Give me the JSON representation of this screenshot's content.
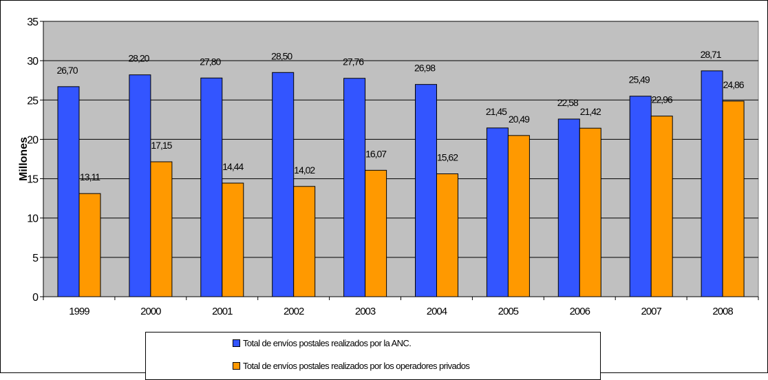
{
  "chart_data": {
    "type": "bar",
    "categories": [
      "1999",
      "2000",
      "2001",
      "2002",
      "2003",
      "2004",
      "2005",
      "2006",
      "2007",
      "2008"
    ],
    "series": [
      {
        "name": "Total de envíos postales realizados por la ANC.",
        "color": "#3355ff",
        "values": [
          26.7,
          28.2,
          27.8,
          28.5,
          27.76,
          26.98,
          21.45,
          22.58,
          25.49,
          28.71
        ],
        "labels": [
          "26,70",
          "28,20",
          "27,80",
          "28,50",
          "27,76",
          "26,98",
          "21,45",
          "22,58",
          "25,49",
          "28,71"
        ]
      },
      {
        "name": "Total de envíos postales realizados por los operadores privados",
        "color": "#ff9900",
        "values": [
          13.11,
          17.15,
          14.44,
          14.02,
          16.07,
          15.62,
          20.49,
          21.42,
          22.96,
          24.86
        ],
        "labels": [
          "13,11",
          "17,15",
          "14,44",
          "14,02",
          "16,07",
          "15,62",
          "20,49",
          "21,42",
          "22,96",
          "24,86"
        ]
      }
    ],
    "ylabel": "Millones",
    "xlabel": "",
    "ylim": [
      0,
      35
    ],
    "yticks": [
      0,
      5,
      10,
      15,
      20,
      25,
      30,
      35
    ],
    "grid": true,
    "plot_background": "#c0c0c0",
    "legend_position": "bottom"
  }
}
